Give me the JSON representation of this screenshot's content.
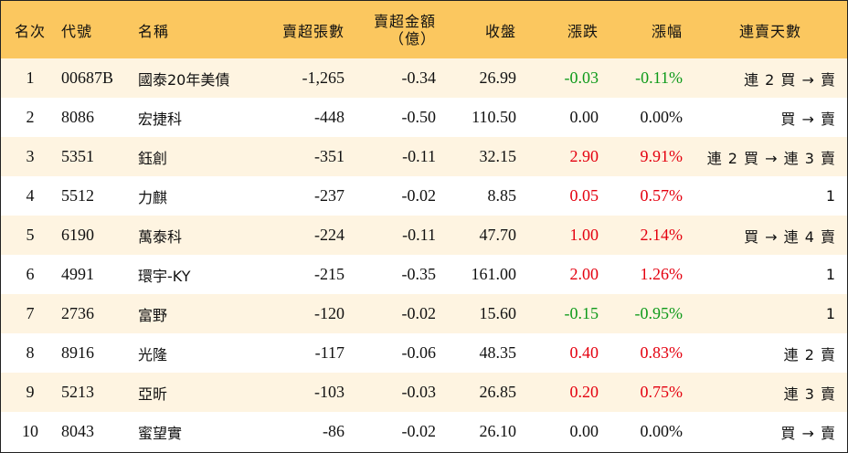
{
  "headers": {
    "rank": "名次",
    "code": "代號",
    "name": "名稱",
    "sell_lots": "賣超張數",
    "sell_amount_line1": "賣超金額",
    "sell_amount_line2": "（億）",
    "close": "收盤",
    "change": "漲跌",
    "change_pct": "漲幅",
    "consecutive": "連賣天數"
  },
  "colors": {
    "header_bg": "#FBC75F",
    "stripe_bg": "#FEF4E1",
    "up": "#E4000F",
    "down": "#0E9A1A"
  },
  "rows": [
    {
      "rank": "1",
      "code": "00687B",
      "name": "國泰20年美債",
      "sell_lots": "-1,265",
      "sell_amount": "-0.34",
      "close": "26.99",
      "change": "-0.03",
      "change_pct": "-0.11%",
      "consecutive": "連 2 買 → 賣",
      "direction": "down"
    },
    {
      "rank": "2",
      "code": "8086",
      "name": "宏捷科",
      "sell_lots": "-448",
      "sell_amount": "-0.50",
      "close": "110.50",
      "change": "0.00",
      "change_pct": "0.00%",
      "consecutive": "買 → 賣",
      "direction": "flat"
    },
    {
      "rank": "3",
      "code": "5351",
      "name": "鈺創",
      "sell_lots": "-351",
      "sell_amount": "-0.11",
      "close": "32.15",
      "change": "2.90",
      "change_pct": "9.91%",
      "consecutive": "連 2 買 → 連 3 賣",
      "direction": "up"
    },
    {
      "rank": "4",
      "code": "5512",
      "name": "力麒",
      "sell_lots": "-237",
      "sell_amount": "-0.02",
      "close": "8.85",
      "change": "0.05",
      "change_pct": "0.57%",
      "consecutive": "1",
      "direction": "up"
    },
    {
      "rank": "5",
      "code": "6190",
      "name": "萬泰科",
      "sell_lots": "-224",
      "sell_amount": "-0.11",
      "close": "47.70",
      "change": "1.00",
      "change_pct": "2.14%",
      "consecutive": "買 → 連 4 賣",
      "direction": "up"
    },
    {
      "rank": "6",
      "code": "4991",
      "name": "環宇-KY",
      "sell_lots": "-215",
      "sell_amount": "-0.35",
      "close": "161.00",
      "change": "2.00",
      "change_pct": "1.26%",
      "consecutive": "1",
      "direction": "up"
    },
    {
      "rank": "7",
      "code": "2736",
      "name": "富野",
      "sell_lots": "-120",
      "sell_amount": "-0.02",
      "close": "15.60",
      "change": "-0.15",
      "change_pct": "-0.95%",
      "consecutive": "1",
      "direction": "down"
    },
    {
      "rank": "8",
      "code": "8916",
      "name": "光隆",
      "sell_lots": "-117",
      "sell_amount": "-0.06",
      "close": "48.35",
      "change": "0.40",
      "change_pct": "0.83%",
      "consecutive": "連 2 賣",
      "direction": "up"
    },
    {
      "rank": "9",
      "code": "5213",
      "name": "亞昕",
      "sell_lots": "-103",
      "sell_amount": "-0.03",
      "close": "26.85",
      "change": "0.20",
      "change_pct": "0.75%",
      "consecutive": "連 3 賣",
      "direction": "up"
    },
    {
      "rank": "10",
      "code": "8043",
      "name": "蜜望實",
      "sell_lots": "-86",
      "sell_amount": "-0.02",
      "close": "26.10",
      "change": "0.00",
      "change_pct": "0.00%",
      "consecutive": "買 → 賣",
      "direction": "flat"
    }
  ]
}
